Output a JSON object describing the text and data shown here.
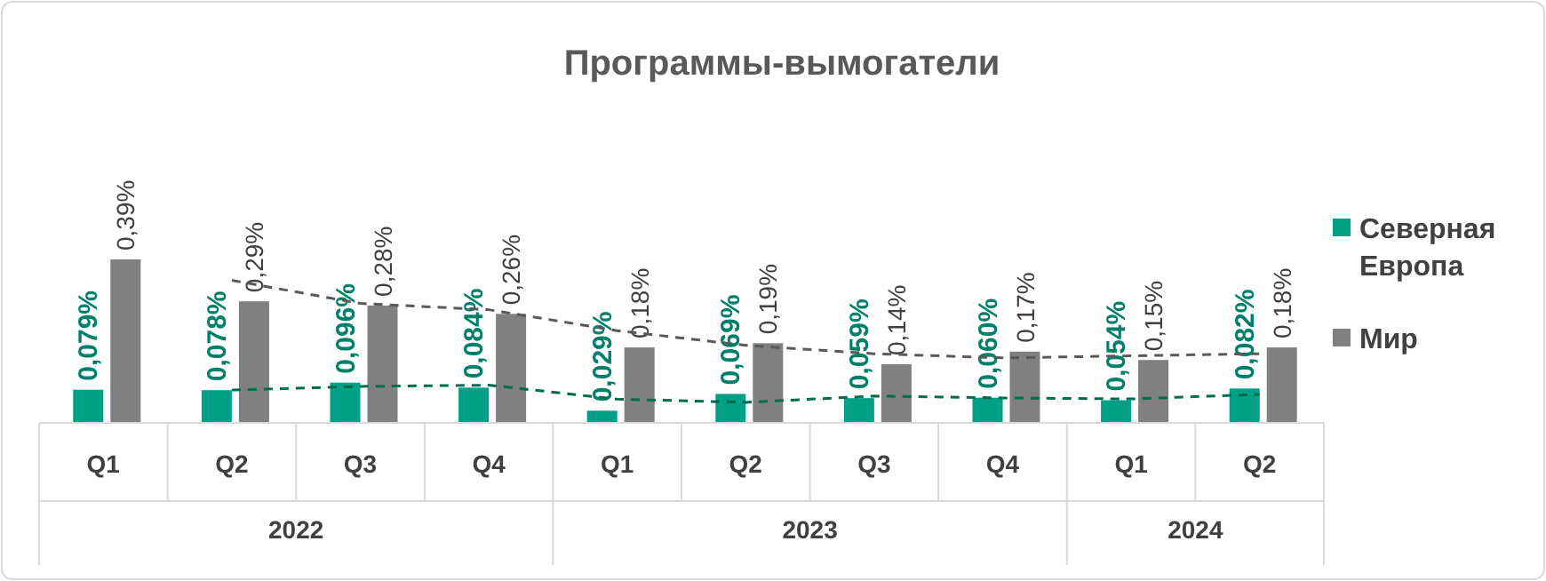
{
  "chart_data": {
    "type": "bar",
    "title": "Программы-вымогатели",
    "categories": [
      "Q1",
      "Q2",
      "Q3",
      "Q4",
      "Q1",
      "Q2",
      "Q3",
      "Q4",
      "Q1",
      "Q2"
    ],
    "series": [
      {
        "name": "Северная Европа",
        "color": "#00a087",
        "values": [
          0.079,
          0.078,
          0.096,
          0.084,
          0.029,
          0.069,
          0.059,
          0.06,
          0.054,
          0.082
        ],
        "value_labels": [
          "0,079%",
          "0,078%",
          "0,096%",
          "0,084%",
          "0,029%",
          "0,069%",
          "0,059%",
          "0,060%",
          "0,054%",
          "0,082%"
        ]
      },
      {
        "name": "Мир",
        "color": "#808080",
        "values": [
          0.39,
          0.29,
          0.28,
          0.26,
          0.18,
          0.19,
          0.14,
          0.17,
          0.15,
          0.18
        ],
        "value_labels": [
          "0,39%",
          "0,29%",
          "0,28%",
          "0,26%",
          "0,18%",
          "0,19%",
          "0,14%",
          "0,17%",
          "0,15%",
          "0,18%"
        ]
      },
      {
        "type": "line",
        "color": "#006b4f",
        "line_style": "dashed",
        "values": [
          null,
          0.0785,
          0.087,
          0.09,
          0.0565,
          0.049,
          0.064,
          0.0595,
          0.057,
          0.068
        ]
      },
      {
        "type": "line",
        "color": "#595959",
        "line_style": "dashed",
        "values": [
          null,
          0.34,
          0.285,
          0.27,
          0.22,
          0.185,
          0.165,
          0.155,
          0.16,
          0.165
        ]
      }
    ],
    "annotations": [
      "2022",
      "2023",
      "2024"
    ],
    "legend": "right"
  }
}
